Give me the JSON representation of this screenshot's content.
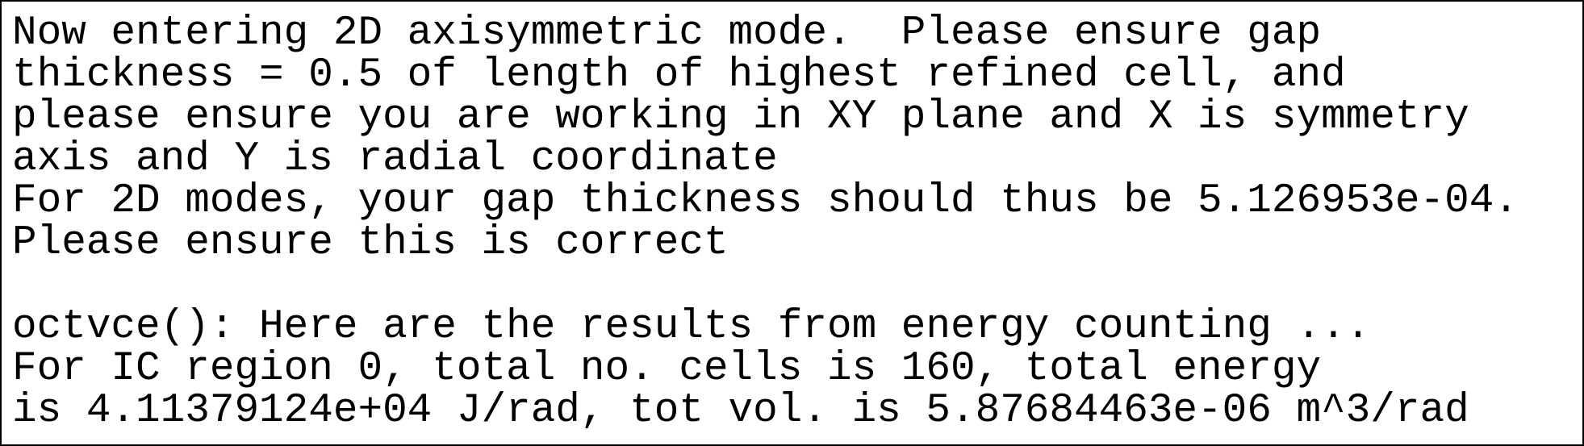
{
  "blocks": [
    {
      "lines": [
        "Now entering 2D axisymmetric mode.  Please ensure gap",
        "thickness = 0.5 of length of highest refined cell, and",
        "please ensure you are working in XY plane and X is symmetry",
        "axis and Y is radial coordinate",
        "For 2D modes, your gap thickness should thus be 5.126953e-04.",
        "Please ensure this is correct"
      ]
    },
    {
      "lines": [
        "octvce(): Here are the results from energy counting ...",
        "For IC region 0, total no. cells is 160, total energy",
        "is 4.11379124e+04 J/rad, tot vol. is 5.87684463e-06 m^3/rad"
      ]
    }
  ]
}
